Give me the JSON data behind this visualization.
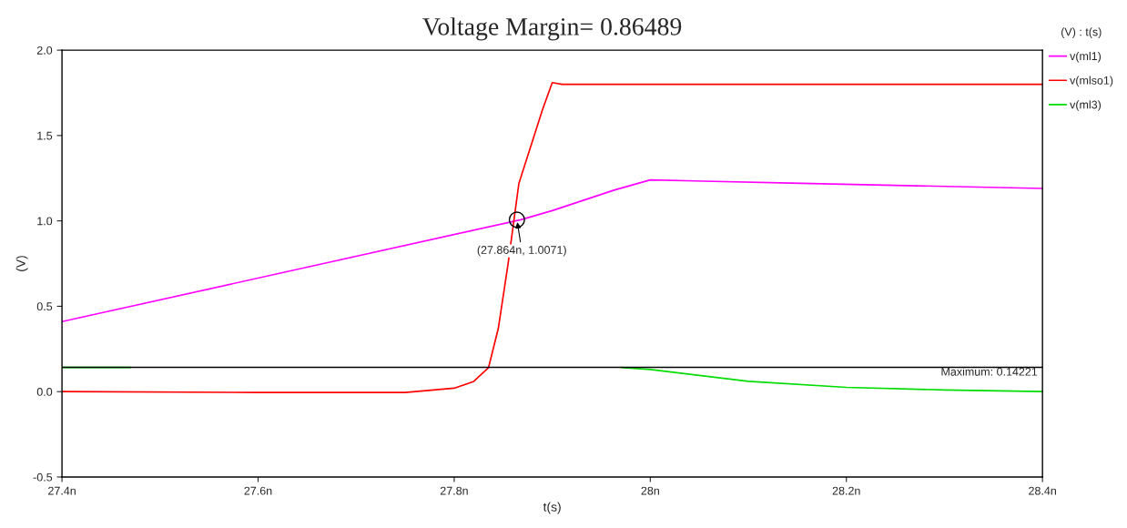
{
  "chart_data": {
    "type": "line",
    "title": "Voltage Margin= 0.86489",
    "xlabel": "t(s)",
    "ylabel": "(V)",
    "legend_title": "(V) : t(s)",
    "legend": "right",
    "grid": false,
    "xlim": [
      27.4,
      28.4
    ],
    "xticks": [
      {
        "value": 27.4,
        "label": "27.4n"
      },
      {
        "value": 27.6,
        "label": "27.6n"
      },
      {
        "value": 27.8,
        "label": "27.8n"
      },
      {
        "value": 28.0,
        "label": "28n"
      },
      {
        "value": 28.2,
        "label": "28.2n"
      },
      {
        "value": 28.4,
        "label": "28.4n"
      }
    ],
    "ylim": [
      -0.5,
      2.0
    ],
    "yticks": [
      {
        "value": -0.5,
        "label": "-0.5"
      },
      {
        "value": 0,
        "label": "0.0"
      },
      {
        "value": 0.5,
        "label": "0.5"
      },
      {
        "value": 1.0,
        "label": "1.0"
      },
      {
        "value": 1.5,
        "label": "1.5"
      },
      {
        "value": 2.0,
        "label": "2.0"
      }
    ],
    "series": [
      {
        "name": "v(ml1)",
        "color": "#ff00ff",
        "x": [
          27.4,
          27.868,
          27.9,
          27.963,
          28.0,
          28.154,
          28.4
        ],
        "values": [
          0.41,
          1.007,
          1.06,
          1.18,
          1.24,
          1.22,
          1.19
        ]
      },
      {
        "name": "v(mlso1)",
        "color": "#ff0000",
        "x": [
          27.4,
          27.6,
          27.75,
          27.8,
          27.82,
          27.835,
          27.845,
          27.855,
          27.866,
          27.89,
          27.9,
          27.91,
          28.4
        ],
        "values": [
          0.0,
          -0.005,
          -0.005,
          0.02,
          0.06,
          0.14,
          0.37,
          0.75,
          1.22,
          1.65,
          1.81,
          1.8,
          1.8
        ]
      },
      {
        "name": "v(ml3)",
        "color": "#00dd00",
        "x": [
          27.4,
          27.47,
          27.6,
          27.97,
          28.0,
          28.1,
          28.2,
          28.3,
          28.4
        ],
        "values": [
          0.142,
          0.142,
          null,
          0.142,
          0.13,
          0.06,
          0.025,
          0.01,
          0.0
        ]
      }
    ],
    "ref_lines": [
      {
        "axis": "y",
        "value": 0.14221,
        "label": "Maximum: 0.14221",
        "color": "#000000"
      }
    ],
    "annotations": [
      {
        "text": "(27.864n, 1.0071)",
        "x": 27.864,
        "y": 1.0071
      }
    ]
  }
}
